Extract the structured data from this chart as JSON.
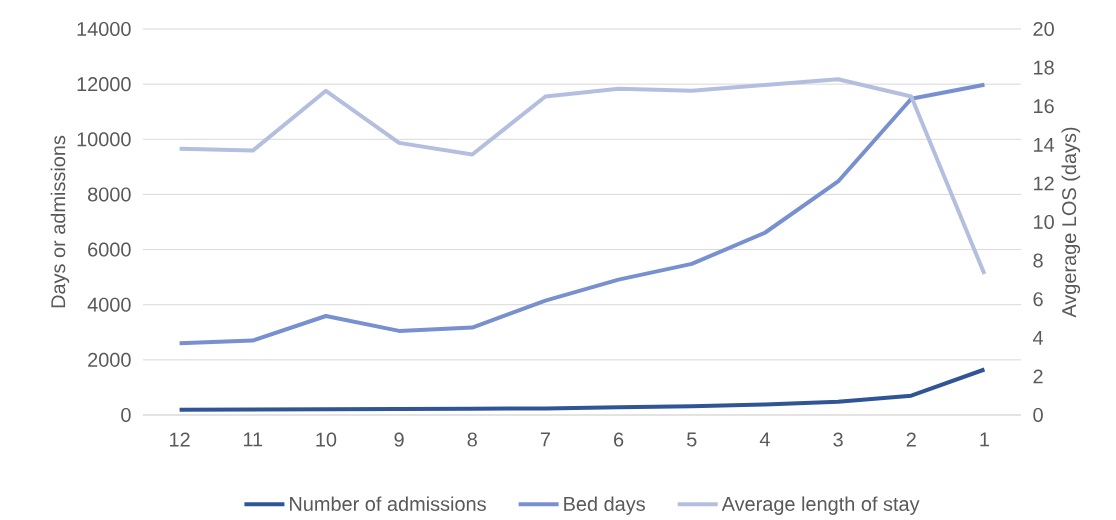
{
  "chart_data": {
    "type": "line",
    "xlabel": null,
    "ylabel": "Days or admissions",
    "y2label": "Avgerage LOS (days)",
    "categories": [
      "12",
      "11",
      "10",
      "9",
      "8",
      "7",
      "6",
      "5",
      "4",
      "3",
      "2",
      "1"
    ],
    "series": [
      {
        "name": "Number of admissions",
        "color": "#2f5597",
        "values": [
          190,
          200,
          210,
          220,
          230,
          240,
          280,
          320,
          380,
          480,
          700,
          1650
        ]
      },
      {
        "name": "Bed days",
        "color": "#7890cf",
        "values": [
          2600,
          2700,
          3590,
          3050,
          3170,
          4150,
          4910,
          5480,
          6610,
          8470,
          11470,
          11980
        ]
      },
      {
        "name": "Average length of stay",
        "color": "#b4bfe0",
        "axis": "y2",
        "values": [
          13.8,
          13.7,
          16.8,
          14.1,
          13.5,
          16.5,
          16.9,
          16.8,
          17.1,
          17.4,
          16.5,
          7.3
        ]
      }
    ],
    "ylim": [
      0,
      14000
    ],
    "yticks": [
      0,
      2000,
      4000,
      6000,
      8000,
      10000,
      12000,
      14000
    ],
    "y2lim": [
      0,
      20
    ],
    "y2ticks": [
      0,
      2,
      4,
      6,
      8,
      10,
      12,
      14,
      16,
      18,
      20
    ],
    "grid": "y",
    "legend": "bottom",
    "marker": "none",
    "line_style": "solid"
  }
}
